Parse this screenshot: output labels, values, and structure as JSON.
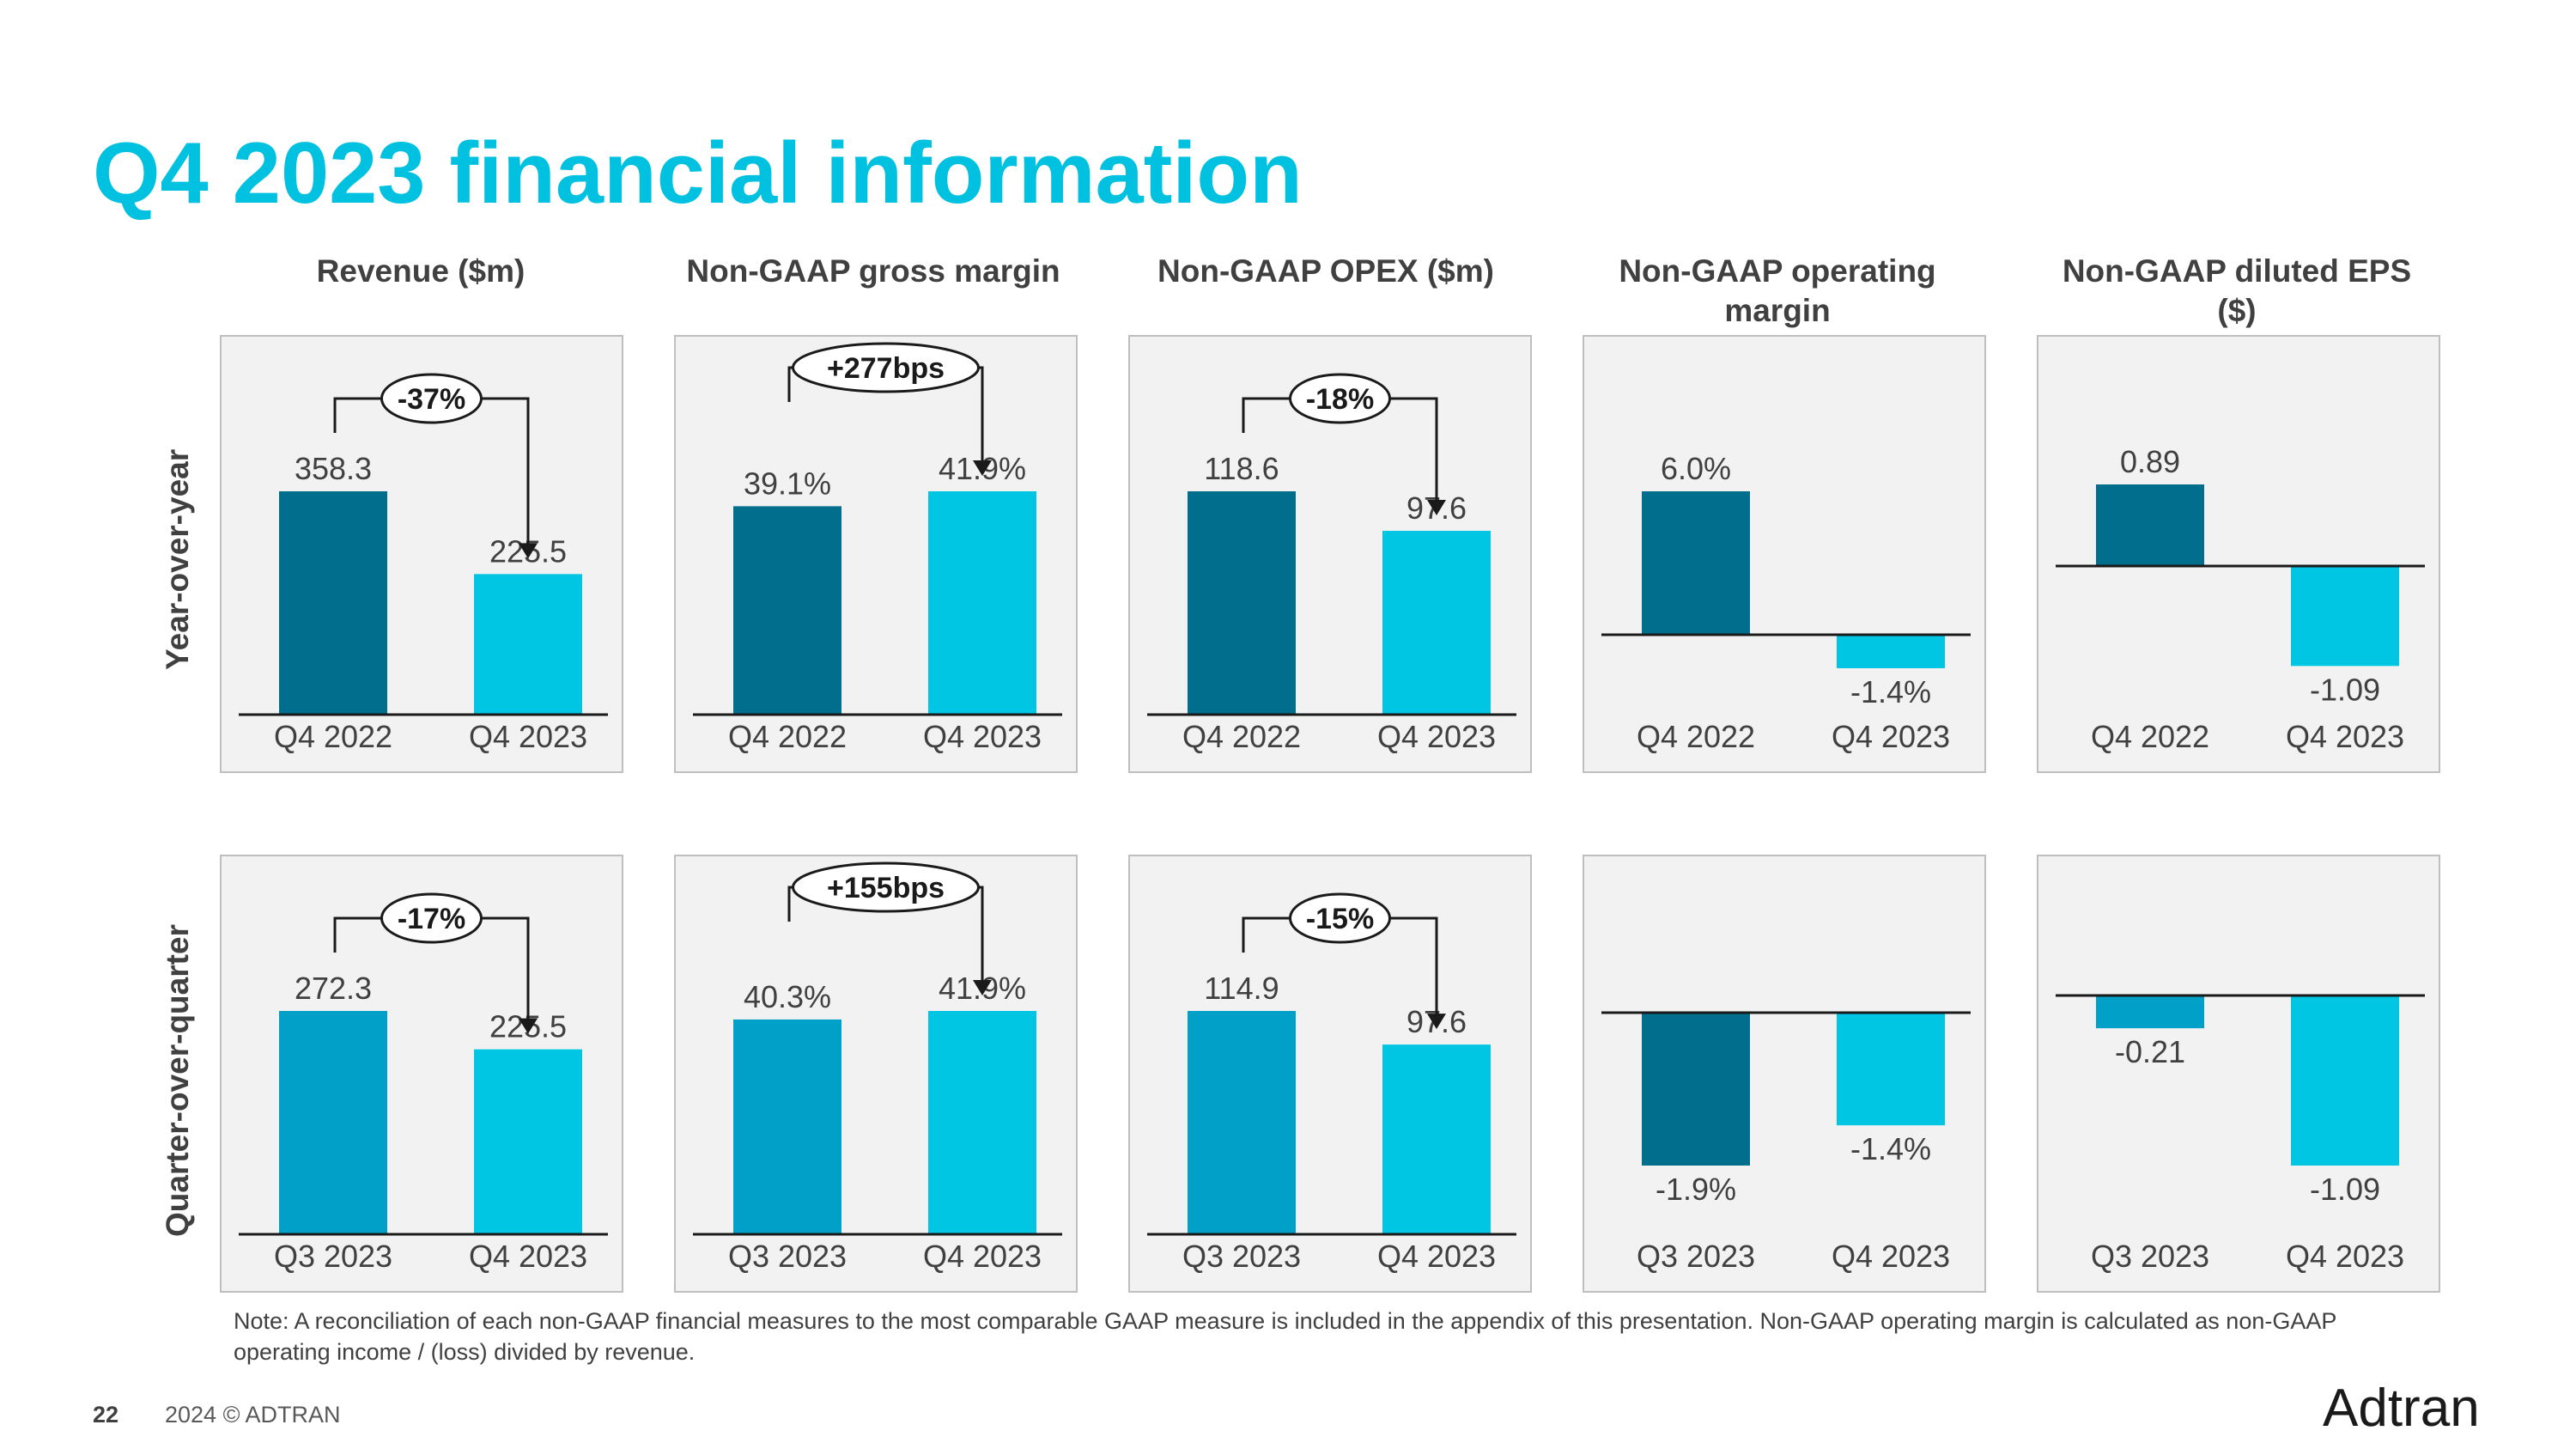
{
  "title": "Q4 2023 financial information",
  "row_headers": [
    "Year-over-year",
    "Quarter-over-quarter"
  ],
  "column_headers": [
    "Revenue ($m)",
    "Non-GAAP gross margin",
    "Non-GAAP OPEX ($m)",
    "Non-GAAP operating margin",
    "Non-GAAP diluted EPS ($)"
  ],
  "note": "Note: A reconciliation of each non-GAAP financial measures to the most comparable GAAP measure is included in the appendix of this presentation. Non-GAAP operating margin is calculated as non-GAAP operating income / (loss) divided by revenue.",
  "footer": {
    "page_number": "22",
    "copyright": "2024 © ADTRAN"
  },
  "logo_text": "Adtran",
  "colors": {
    "title": "#00c2e0",
    "dark_bar": "#006e8c",
    "mid_bar": "#00a0c8",
    "light_bar": "#00c5e3",
    "text": "#404040"
  },
  "chart_data": [
    {
      "type": "bar",
      "row": "Year-over-year",
      "column": "Revenue ($m)",
      "categories": [
        "Q4 2022",
        "Q4 2023"
      ],
      "values": [
        358.3,
        225.5
      ],
      "labels": [
        "358.3",
        "225.5"
      ],
      "bar_colors": [
        "#006e8c",
        "#00c5e3"
      ],
      "change": "-37%",
      "ylim": [
        0,
        358.3
      ]
    },
    {
      "type": "bar",
      "row": "Year-over-year",
      "column": "Non-GAAP gross margin",
      "categories": [
        "Q4 2022",
        "Q4 2023"
      ],
      "values": [
        39.1,
        41.9
      ],
      "labels": [
        "39.1%",
        "41.9%"
      ],
      "bar_colors": [
        "#006e8c",
        "#00c5e3"
      ],
      "change": "+277bps",
      "ylim": [
        0,
        41.9
      ]
    },
    {
      "type": "bar",
      "row": "Year-over-year",
      "column": "Non-GAAP OPEX ($m)",
      "categories": [
        "Q4 2022",
        "Q4 2023"
      ],
      "values": [
        118.6,
        97.6
      ],
      "labels": [
        "118.6",
        "97.6"
      ],
      "bar_colors": [
        "#006e8c",
        "#00c5e3"
      ],
      "change": "-18%",
      "ylim": [
        0,
        118.6
      ]
    },
    {
      "type": "bar",
      "row": "Year-over-year",
      "column": "Non-GAAP operating margin",
      "categories": [
        "Q4 2022",
        "Q4 2023"
      ],
      "values": [
        6.0,
        -1.4
      ],
      "labels": [
        "6.0%",
        "-1.4%"
      ],
      "bar_colors": [
        "#006e8c",
        "#00c5e3"
      ],
      "change": ""
    },
    {
      "type": "bar",
      "row": "Year-over-year",
      "column": "Non-GAAP diluted EPS ($)",
      "categories": [
        "Q4 2022",
        "Q4 2023"
      ],
      "values": [
        0.89,
        -1.09
      ],
      "labels": [
        "0.89",
        "-1.09"
      ],
      "bar_colors": [
        "#006e8c",
        "#00c5e3"
      ],
      "change": ""
    },
    {
      "type": "bar",
      "row": "Quarter-over-quarter",
      "column": "Revenue ($m)",
      "categories": [
        "Q3 2023",
        "Q4 2023"
      ],
      "values": [
        272.3,
        225.5
      ],
      "labels": [
        "272.3",
        "225.5"
      ],
      "bar_colors": [
        "#00a0c8",
        "#00c5e3"
      ],
      "change": "-17%",
      "ylim": [
        0,
        272.3
      ]
    },
    {
      "type": "bar",
      "row": "Quarter-over-quarter",
      "column": "Non-GAAP gross margin",
      "categories": [
        "Q3 2023",
        "Q4 2023"
      ],
      "values": [
        40.3,
        41.9
      ],
      "labels": [
        "40.3%",
        "41.9%"
      ],
      "bar_colors": [
        "#00a0c8",
        "#00c5e3"
      ],
      "change": "+155bps",
      "ylim": [
        0,
        41.9
      ]
    },
    {
      "type": "bar",
      "row": "Quarter-over-quarter",
      "column": "Non-GAAP OPEX ($m)",
      "categories": [
        "Q3 2023",
        "Q4 2023"
      ],
      "values": [
        114.9,
        97.6
      ],
      "labels": [
        "114.9",
        "97.6"
      ],
      "bar_colors": [
        "#00a0c8",
        "#00c5e3"
      ],
      "change": "-15%",
      "ylim": [
        0,
        114.9
      ]
    },
    {
      "type": "bar",
      "row": "Quarter-over-quarter",
      "column": "Non-GAAP operating margin",
      "categories": [
        "Q3 2023",
        "Q4 2023"
      ],
      "values": [
        -1.9,
        -1.4
      ],
      "labels": [
        "-1.9%",
        "-1.4%"
      ],
      "bar_colors": [
        "#006e8c",
        "#00c5e3"
      ],
      "change": ""
    },
    {
      "type": "bar",
      "row": "Quarter-over-quarter",
      "column": "Non-GAAP diluted EPS ($)",
      "categories": [
        "Q3 2023",
        "Q4 2023"
      ],
      "values": [
        -0.21,
        -1.09
      ],
      "labels": [
        "-0.21",
        "-1.09"
      ],
      "bar_colors": [
        "#00a0c8",
        "#00c5e3"
      ],
      "change": ""
    }
  ]
}
